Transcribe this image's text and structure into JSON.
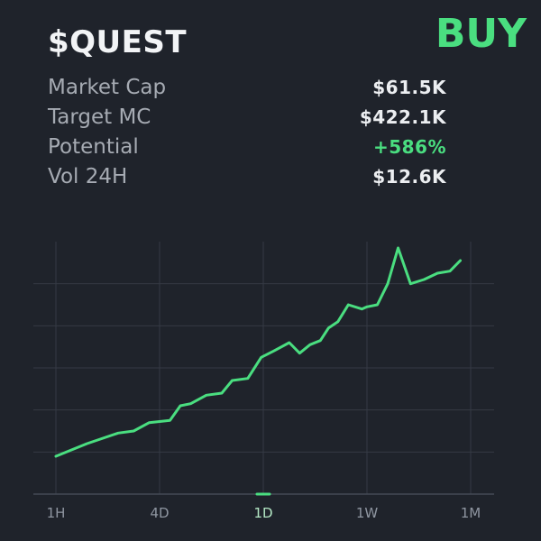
{
  "token": {
    "ticker": "$QUEST",
    "buy_label": "BUY"
  },
  "stats": [
    {
      "label": "Market Cap",
      "value": "$61.5K",
      "positive": false
    },
    {
      "label": "Target MC",
      "value": "$422.1K",
      "positive": false
    },
    {
      "label": "Potential",
      "value": "+586%",
      "positive": true
    },
    {
      "label": "Vol 24H",
      "value": "$12.6K",
      "positive": false
    }
  ],
  "colors": {
    "background": "#1f232b",
    "accent": "#4ade80",
    "grid": "#353a44",
    "text_muted": "#a6abb3"
  },
  "chart_data": {
    "type": "line",
    "xlabel": "",
    "ylabel": "",
    "x_ticks": [
      "1H",
      "4D",
      "1D",
      "1W",
      "1M"
    ],
    "selected_tick": "1D",
    "xlim": [
      0,
      4
    ],
    "ylim": [
      0,
      6
    ],
    "grid": true,
    "series": [
      {
        "x": [
          0,
          0.3,
          0.6,
          0.75,
          0.9,
          1.1,
          1.2,
          1.3,
          1.45,
          1.6,
          1.7,
          1.85,
          1.98,
          2.1,
          2.25,
          2.35,
          2.45,
          2.55,
          2.63,
          2.72,
          2.82,
          2.95,
          3.0,
          3.1,
          3.2,
          3.3,
          3.42,
          3.55,
          3.68,
          3.8,
          3.9
        ],
        "values": [
          0.9,
          1.2,
          1.45,
          1.5,
          1.7,
          1.75,
          2.1,
          2.15,
          2.35,
          2.4,
          2.7,
          2.75,
          3.25,
          3.4,
          3.6,
          3.35,
          3.55,
          3.65,
          3.95,
          4.1,
          4.5,
          4.4,
          4.45,
          4.5,
          5.0,
          5.85,
          5.0,
          5.1,
          5.25,
          5.3,
          5.55
        ]
      }
    ]
  }
}
